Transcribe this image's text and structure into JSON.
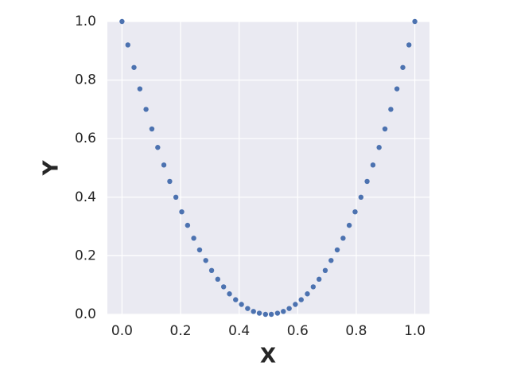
{
  "chart_data": {
    "type": "scatter",
    "x_label": "X",
    "y_label": "Y",
    "color": "#4c72b0",
    "grid": true,
    "xlim": [
      -0.05,
      1.05
    ],
    "ylim": [
      0,
      1
    ],
    "xticks": [
      {
        "value": 0,
        "label": "0.0"
      },
      {
        "value": 0.2,
        "label": "0.2"
      },
      {
        "value": 0.4,
        "label": "0.4"
      },
      {
        "value": 0.6,
        "label": "0.6"
      },
      {
        "value": 0.8,
        "label": "0.8"
      },
      {
        "value": 1,
        "label": "1.0"
      }
    ],
    "yticks": [
      {
        "value": 0,
        "label": "0.0"
      },
      {
        "value": 0.2,
        "label": "0.2"
      },
      {
        "value": 0.4,
        "label": "0.4"
      },
      {
        "value": 0.6,
        "label": "0.6"
      },
      {
        "value": 0.8,
        "label": "0.8"
      },
      {
        "value": 1,
        "label": "1.0"
      }
    ],
    "x": [
      0,
      0.02,
      0.041,
      0.061,
      0.082,
      0.102,
      0.122,
      0.143,
      0.163,
      0.184,
      0.204,
      0.224,
      0.245,
      0.265,
      0.286,
      0.306,
      0.327,
      0.347,
      0.367,
      0.388,
      0.408,
      0.429,
      0.449,
      0.469,
      0.49,
      0.51,
      0.531,
      0.551,
      0.571,
      0.592,
      0.612,
      0.633,
      0.653,
      0.673,
      0.694,
      0.714,
      0.735,
      0.755,
      0.776,
      0.796,
      0.816,
      0.837,
      0.857,
      0.878,
      0.898,
      0.918,
      0.939,
      0.959,
      0.98,
      1
    ],
    "values": [
      1,
      0.92,
      0.843,
      0.77,
      0.7,
      0.633,
      0.57,
      0.51,
      0.454,
      0.4,
      0.35,
      0.304,
      0.26,
      0.22,
      0.184,
      0.15,
      0.12,
      0.094,
      0.07,
      0.05,
      0.034,
      0.02,
      0.01,
      0.004,
      0,
      0,
      0.004,
      0.01,
      0.02,
      0.034,
      0.05,
      0.07,
      0.094,
      0.12,
      0.15,
      0.184,
      0.22,
      0.26,
      0.304,
      0.35,
      0.4,
      0.454,
      0.51,
      0.57,
      0.633,
      0.7,
      0.77,
      0.843,
      0.92,
      1
    ]
  }
}
